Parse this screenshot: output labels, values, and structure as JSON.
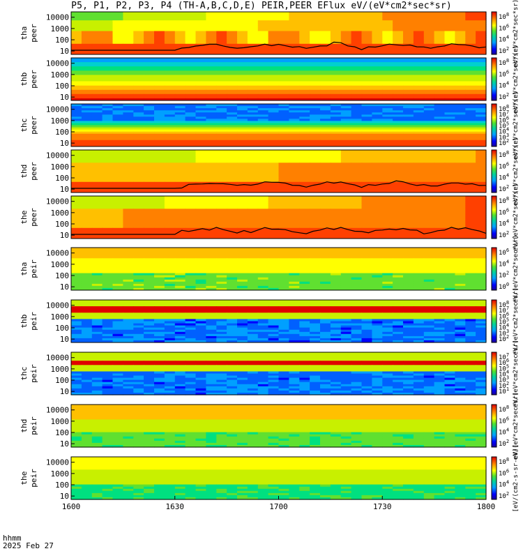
{
  "title": "P5, P1, P2, P3, P4 (TH-A,B,C,D,E) PEIR,PEER EFlux eV/(eV*cm2*sec*sr)",
  "x_info": {
    "line1": "hhmm",
    "line2": "2025 Feb 27"
  },
  "chart_data": {
    "type": "heatmap",
    "x_ticks": [
      "1600",
      "1630",
      "1700",
      "1730",
      "1800"
    ],
    "x_range_hhmm": [
      "1600",
      "1800"
    ],
    "y_scale": "log",
    "panels": [
      {
        "probe": "tha",
        "product": "peer",
        "y_ticks": [
          "10",
          "100",
          "1000",
          "10000"
        ],
        "cbar_ticks": [
          "10^2",
          "10^4",
          "10^6",
          "10^8"
        ],
        "cbar_label": "eV/(eV*cm2*sec*sr)",
        "sc_potential_line": true
      },
      {
        "probe": "thb",
        "product": "peer",
        "y_ticks": [
          "10",
          "100",
          "1000",
          "10000"
        ],
        "cbar_ticks": [
          "10^2",
          "10^4",
          "10^6",
          "10^8"
        ],
        "cbar_label": "eV/(eV*cm2*sec*sr)",
        "sc_potential_line": false
      },
      {
        "probe": "thc",
        "product": "peer",
        "y_ticks": [
          "10",
          "100",
          "1000",
          "10000"
        ],
        "cbar_ticks": [
          "10^2",
          "10^3",
          "10^4",
          "10^5",
          "10^6",
          "10^7",
          "10^8"
        ],
        "cbar_label": "eV/(eV*cm2*sec*sr)",
        "sc_potential_line": false
      },
      {
        "probe": "thd",
        "product": "peer",
        "y_ticks": [
          "10",
          "100",
          "1000",
          "10000"
        ],
        "cbar_ticks": [
          "10^2",
          "10^4",
          "10^6",
          "10^8"
        ],
        "cbar_label": "eV/(eV*cm2*sec*sr)",
        "sc_potential_line": true
      },
      {
        "probe": "the",
        "product": "peer",
        "y_ticks": [
          "10",
          "100",
          "1000",
          "10000"
        ],
        "cbar_ticks": [
          "10^2",
          "10^4",
          "10^6",
          "10^8"
        ],
        "cbar_label": "eV/(eV*cm2*sec*sr)",
        "sc_potential_line": true
      },
      {
        "probe": "tha",
        "product": "peir",
        "y_ticks": [
          "10",
          "100",
          "1000",
          "10000"
        ],
        "cbar_ticks": [
          "10^0",
          "10^2",
          "10^4",
          "10^6"
        ],
        "cbar_label": "eV/(eV*cm2*sec*sr)",
        "sc_potential_line": false
      },
      {
        "probe": "thb",
        "product": "peir",
        "y_ticks": [
          "10",
          "100",
          "1000",
          "10000"
        ],
        "cbar_ticks": [
          "10^2",
          "10^3",
          "10^4",
          "10^5",
          "10^6",
          "10^7",
          "10^8"
        ],
        "cbar_label": "eV/(eV*cm2*sec*sr)",
        "sc_potential_line": false
      },
      {
        "probe": "thc",
        "product": "peir",
        "y_ticks": [
          "10",
          "100",
          "1000",
          "10000"
        ],
        "cbar_ticks": [
          "10^1",
          "10^2",
          "10^3",
          "10^4",
          "10^5",
          "10^6",
          "10^7"
        ],
        "cbar_label": "eV/(eV*cm2*sec*sr)",
        "sc_potential_line": false
      },
      {
        "probe": "thd",
        "product": "peir",
        "y_ticks": [
          "10",
          "100",
          "1000",
          "10000"
        ],
        "cbar_ticks": [
          "10^2",
          "10^4",
          "10^6",
          "10^8"
        ],
        "cbar_label": "eV/(eV*cm2*sec*sr)",
        "sc_potential_line": false
      },
      {
        "probe": "the",
        "product": "peir",
        "y_ticks": [
          "10",
          "100",
          "1000",
          "10000"
        ],
        "cbar_ticks": [
          "10^2",
          "10^4",
          "10^6",
          "10^8"
        ],
        "cbar_label": "[eV/(cm2-s-sr-eV)]",
        "sc_potential_line": false
      }
    ]
  }
}
